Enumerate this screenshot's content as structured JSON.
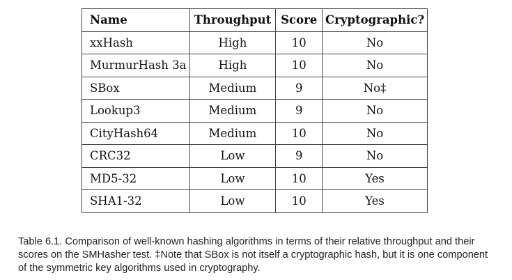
{
  "table": {
    "headers": [
      "Name",
      "Throughput",
      "Score",
      "Cryptographic?"
    ],
    "rows": [
      [
        "xxHash",
        "High",
        "10",
        "No"
      ],
      [
        "MurmurHash 3a",
        "High",
        "10",
        "No"
      ],
      [
        "SBox",
        "Medium",
        "9",
        "No‡"
      ],
      [
        "Lookup3",
        "Medium",
        "9",
        "No"
      ],
      [
        "CityHash64",
        "Medium",
        "10",
        "No"
      ],
      [
        "CRC32",
        "Low",
        "9",
        "No"
      ],
      [
        "MD5-32",
        "Low",
        "10",
        "Yes"
      ],
      [
        "SHA1-32",
        "Low",
        "10",
        "Yes"
      ]
    ]
  },
  "caption": "Table 6.1. Comparison of well-known hashing algorithms in terms of their relative throughput and their scores on the SMHasher test. ‡Note that SBox is not itself a cryptographic hash, but it is one component of the symmetric key algorithms used in cryptography."
}
